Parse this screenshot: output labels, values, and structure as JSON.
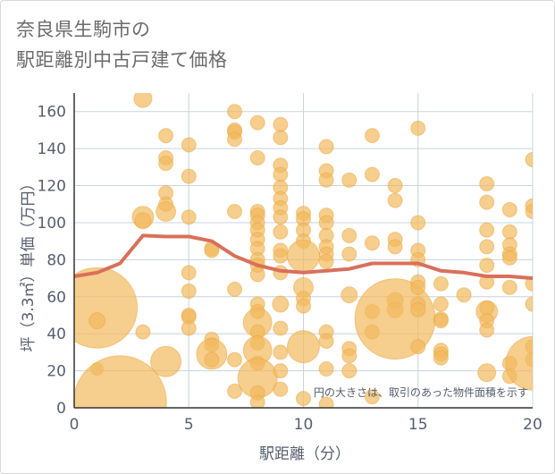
{
  "title_line1": "奈良県生駒市の",
  "title_line2": "駅距離別中古戸建て価格",
  "chart_data": {
    "type": "scatter",
    "xlabel": "駅距離（分）",
    "ylabel": "坪（3.3㎡）単価（万円）",
    "xlim": [
      0,
      20
    ],
    "ylim": [
      0,
      170
    ],
    "xticks": [
      0,
      5,
      10,
      15,
      20
    ],
    "yticks": [
      0,
      20,
      40,
      60,
      80,
      100,
      120,
      140,
      160
    ],
    "grid": true,
    "annotation": "円の大きさは、取引のあった物件面積を示す",
    "colors": {
      "bubble": "#f2b95c",
      "line": "#d9705a",
      "grid": "#c8d4e0",
      "text": "#555e6e"
    },
    "series": [
      {
        "kind": "bubble",
        "points": [
          [
            1,
            54,
            45
          ],
          [
            1,
            47,
            9
          ],
          [
            1,
            21,
            7
          ],
          [
            2,
            3,
            52
          ],
          [
            3,
            167,
            10
          ],
          [
            3,
            103,
            12
          ],
          [
            3,
            101,
            9
          ],
          [
            3,
            41,
            8
          ],
          [
            4,
            147,
            8
          ],
          [
            4,
            135,
            8
          ],
          [
            4,
            132,
            8
          ],
          [
            4,
            116,
            8
          ],
          [
            4,
            110,
            8
          ],
          [
            4,
            106,
            11
          ],
          [
            4,
            25,
            17
          ],
          [
            5,
            142,
            8
          ],
          [
            5,
            125,
            8
          ],
          [
            5,
            103,
            8
          ],
          [
            5,
            73,
            8
          ],
          [
            5,
            63,
            8
          ],
          [
            5,
            50,
            8
          ],
          [
            5,
            49,
            8
          ],
          [
            5,
            43,
            8
          ],
          [
            6,
            86,
            8
          ],
          [
            6,
            85,
            8
          ],
          [
            6,
            37,
            8
          ],
          [
            6,
            34,
            8
          ],
          [
            6,
            29,
            17
          ],
          [
            6,
            26,
            8
          ],
          [
            7,
            160,
            8
          ],
          [
            7,
            150,
            8
          ],
          [
            7,
            149,
            8
          ],
          [
            7,
            145,
            8
          ],
          [
            7,
            106,
            8
          ],
          [
            7,
            64,
            8
          ],
          [
            7,
            26,
            8
          ],
          [
            7,
            9,
            8
          ],
          [
            8,
            154,
            8
          ],
          [
            8,
            135,
            8
          ],
          [
            8,
            106,
            8
          ],
          [
            8,
            104,
            8
          ],
          [
            8,
            100,
            8
          ],
          [
            8,
            96,
            8
          ],
          [
            8,
            91,
            8
          ],
          [
            8,
            86,
            8
          ],
          [
            8,
            80,
            8
          ],
          [
            8,
            77,
            8
          ],
          [
            8,
            72,
            8
          ],
          [
            8,
            56,
            8
          ],
          [
            8,
            52,
            8
          ],
          [
            8,
            46,
            16
          ],
          [
            8,
            41,
            8
          ],
          [
            8,
            35,
            8
          ],
          [
            8,
            31,
            16
          ],
          [
            8,
            24,
            8
          ],
          [
            8,
            16,
            22
          ],
          [
            8,
            8,
            8
          ],
          [
            8,
            3,
            8
          ],
          [
            9,
            153,
            8
          ],
          [
            9,
            146,
            8
          ],
          [
            9,
            131,
            8
          ],
          [
            9,
            126,
            8
          ],
          [
            9,
            119,
            8
          ],
          [
            9,
            113,
            8
          ],
          [
            9,
            108,
            8
          ],
          [
            9,
            103,
            8
          ],
          [
            9,
            95,
            8
          ],
          [
            9,
            85,
            8
          ],
          [
            9,
            82,
            8
          ],
          [
            9,
            73,
            8
          ],
          [
            9,
            56,
            9
          ],
          [
            9,
            43,
            8
          ],
          [
            9,
            30,
            8
          ],
          [
            9,
            20,
            8
          ],
          [
            9,
            10,
            8
          ],
          [
            10,
            105,
            8
          ],
          [
            10,
            102,
            8
          ],
          [
            10,
            96,
            8
          ],
          [
            10,
            90,
            8
          ],
          [
            10,
            82,
            18
          ],
          [
            10,
            65,
            11
          ],
          [
            10,
            59,
            8
          ],
          [
            10,
            55,
            8
          ],
          [
            10,
            33,
            18
          ],
          [
            10,
            5,
            8
          ],
          [
            11,
            141,
            8
          ],
          [
            11,
            128,
            8
          ],
          [
            11,
            123,
            8
          ],
          [
            11,
            104,
            8
          ],
          [
            11,
            100,
            8
          ],
          [
            11,
            93,
            8
          ],
          [
            11,
            87,
            8
          ],
          [
            11,
            83,
            8
          ],
          [
            11,
            79,
            8
          ],
          [
            11,
            41,
            8
          ],
          [
            11,
            36,
            8
          ],
          [
            11,
            21,
            8
          ],
          [
            11,
            2,
            8
          ],
          [
            12,
            123,
            8
          ],
          [
            12,
            93,
            8
          ],
          [
            12,
            83,
            8
          ],
          [
            12,
            61,
            9
          ],
          [
            12,
            32,
            8
          ],
          [
            12,
            28,
            8
          ],
          [
            12,
            20,
            8
          ],
          [
            13,
            147,
            8
          ],
          [
            13,
            126,
            8
          ],
          [
            13,
            89,
            8
          ],
          [
            13,
            52,
            8
          ],
          [
            13,
            41,
            8
          ],
          [
            13,
            6,
            8
          ],
          [
            14,
            120,
            8
          ],
          [
            14,
            112,
            8
          ],
          [
            14,
            91,
            8
          ],
          [
            14,
            87,
            8
          ],
          [
            14,
            58,
            9
          ],
          [
            14,
            53,
            9
          ],
          [
            14,
            48,
            45
          ],
          [
            15,
            151,
            8
          ],
          [
            15,
            100,
            8
          ],
          [
            15,
            85,
            8
          ],
          [
            15,
            80,
            8
          ],
          [
            15,
            68,
            8
          ],
          [
            15,
            65,
            8
          ],
          [
            15,
            56,
            8
          ],
          [
            15,
            53,
            8
          ],
          [
            15,
            33,
            8
          ],
          [
            16,
            67,
            8
          ],
          [
            16,
            56,
            8
          ],
          [
            16,
            48,
            8
          ],
          [
            16,
            47,
            8
          ],
          [
            16,
            31,
            8
          ],
          [
            16,
            29,
            8
          ],
          [
            16,
            27,
            8
          ],
          [
            17,
            61,
            8
          ],
          [
            18,
            121,
            8
          ],
          [
            18,
            111,
            8
          ],
          [
            18,
            96,
            8
          ],
          [
            18,
            87,
            8
          ],
          [
            18,
            77,
            8
          ],
          [
            18,
            68,
            8
          ],
          [
            18,
            54,
            8
          ],
          [
            18,
            52,
            12
          ],
          [
            18,
            47,
            8
          ],
          [
            18,
            42,
            8
          ],
          [
            18,
            19,
            10
          ],
          [
            19,
            107,
            8
          ],
          [
            19,
            95,
            8
          ],
          [
            19,
            88,
            8
          ],
          [
            19,
            83,
            8
          ],
          [
            19,
            81,
            8
          ],
          [
            19,
            65,
            8
          ],
          [
            19,
            24,
            8
          ],
          [
            19,
            17,
            8
          ],
          [
            20,
            134,
            8
          ],
          [
            20,
            109,
            8
          ],
          [
            20,
            106,
            8
          ],
          [
            20,
            67,
            8
          ],
          [
            20,
            56,
            8
          ],
          [
            20,
            33,
            8
          ],
          [
            20,
            26,
            8
          ],
          [
            20,
            24,
            30
          ]
        ]
      },
      {
        "kind": "line",
        "x": [
          0,
          1,
          2,
          3,
          4,
          5,
          6,
          7,
          8,
          9,
          10,
          11,
          12,
          13,
          14,
          15,
          16,
          17,
          18,
          19,
          20
        ],
        "y": [
          71,
          73,
          78,
          93,
          92.5,
          92.5,
          90,
          82,
          77,
          74,
          73,
          74,
          75,
          78,
          78,
          78,
          74,
          73,
          71,
          71,
          70
        ]
      }
    ]
  }
}
